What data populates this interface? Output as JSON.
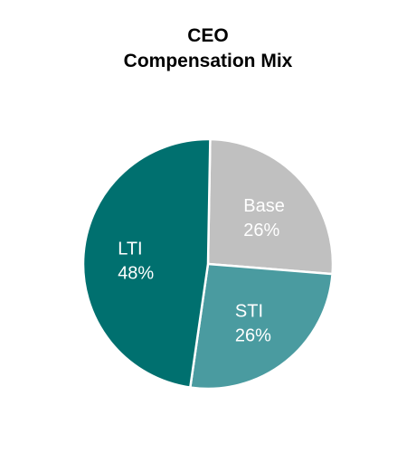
{
  "chart_data": {
    "type": "pie",
    "title_lines": [
      "CEO",
      "Compensation Mix"
    ],
    "legend": "none",
    "slices": [
      {
        "label": "Base",
        "value": 26,
        "value_label": "26%",
        "color": "#c0c0c0"
      },
      {
        "label": "STI",
        "value": 26,
        "value_label": "26%",
        "color": "#4a9ba0"
      },
      {
        "label": "LTI",
        "value": 48,
        "value_label": "48%",
        "color": "#00706f"
      }
    ]
  }
}
